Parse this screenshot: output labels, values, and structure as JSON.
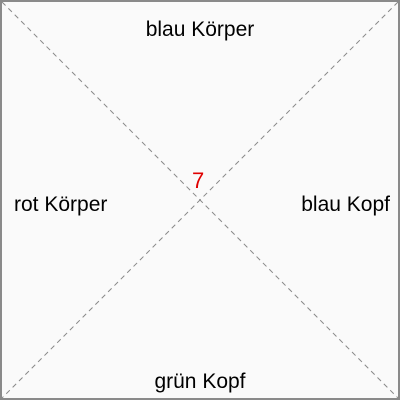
{
  "card": {
    "top_label": "blau Körper",
    "right_label": "blau Kopf",
    "bottom_label": "grün Kopf",
    "left_label": "rot Körper",
    "center_number": "7",
    "center_number_color": "#e00000",
    "diagonal_line_color": "#888888"
  }
}
